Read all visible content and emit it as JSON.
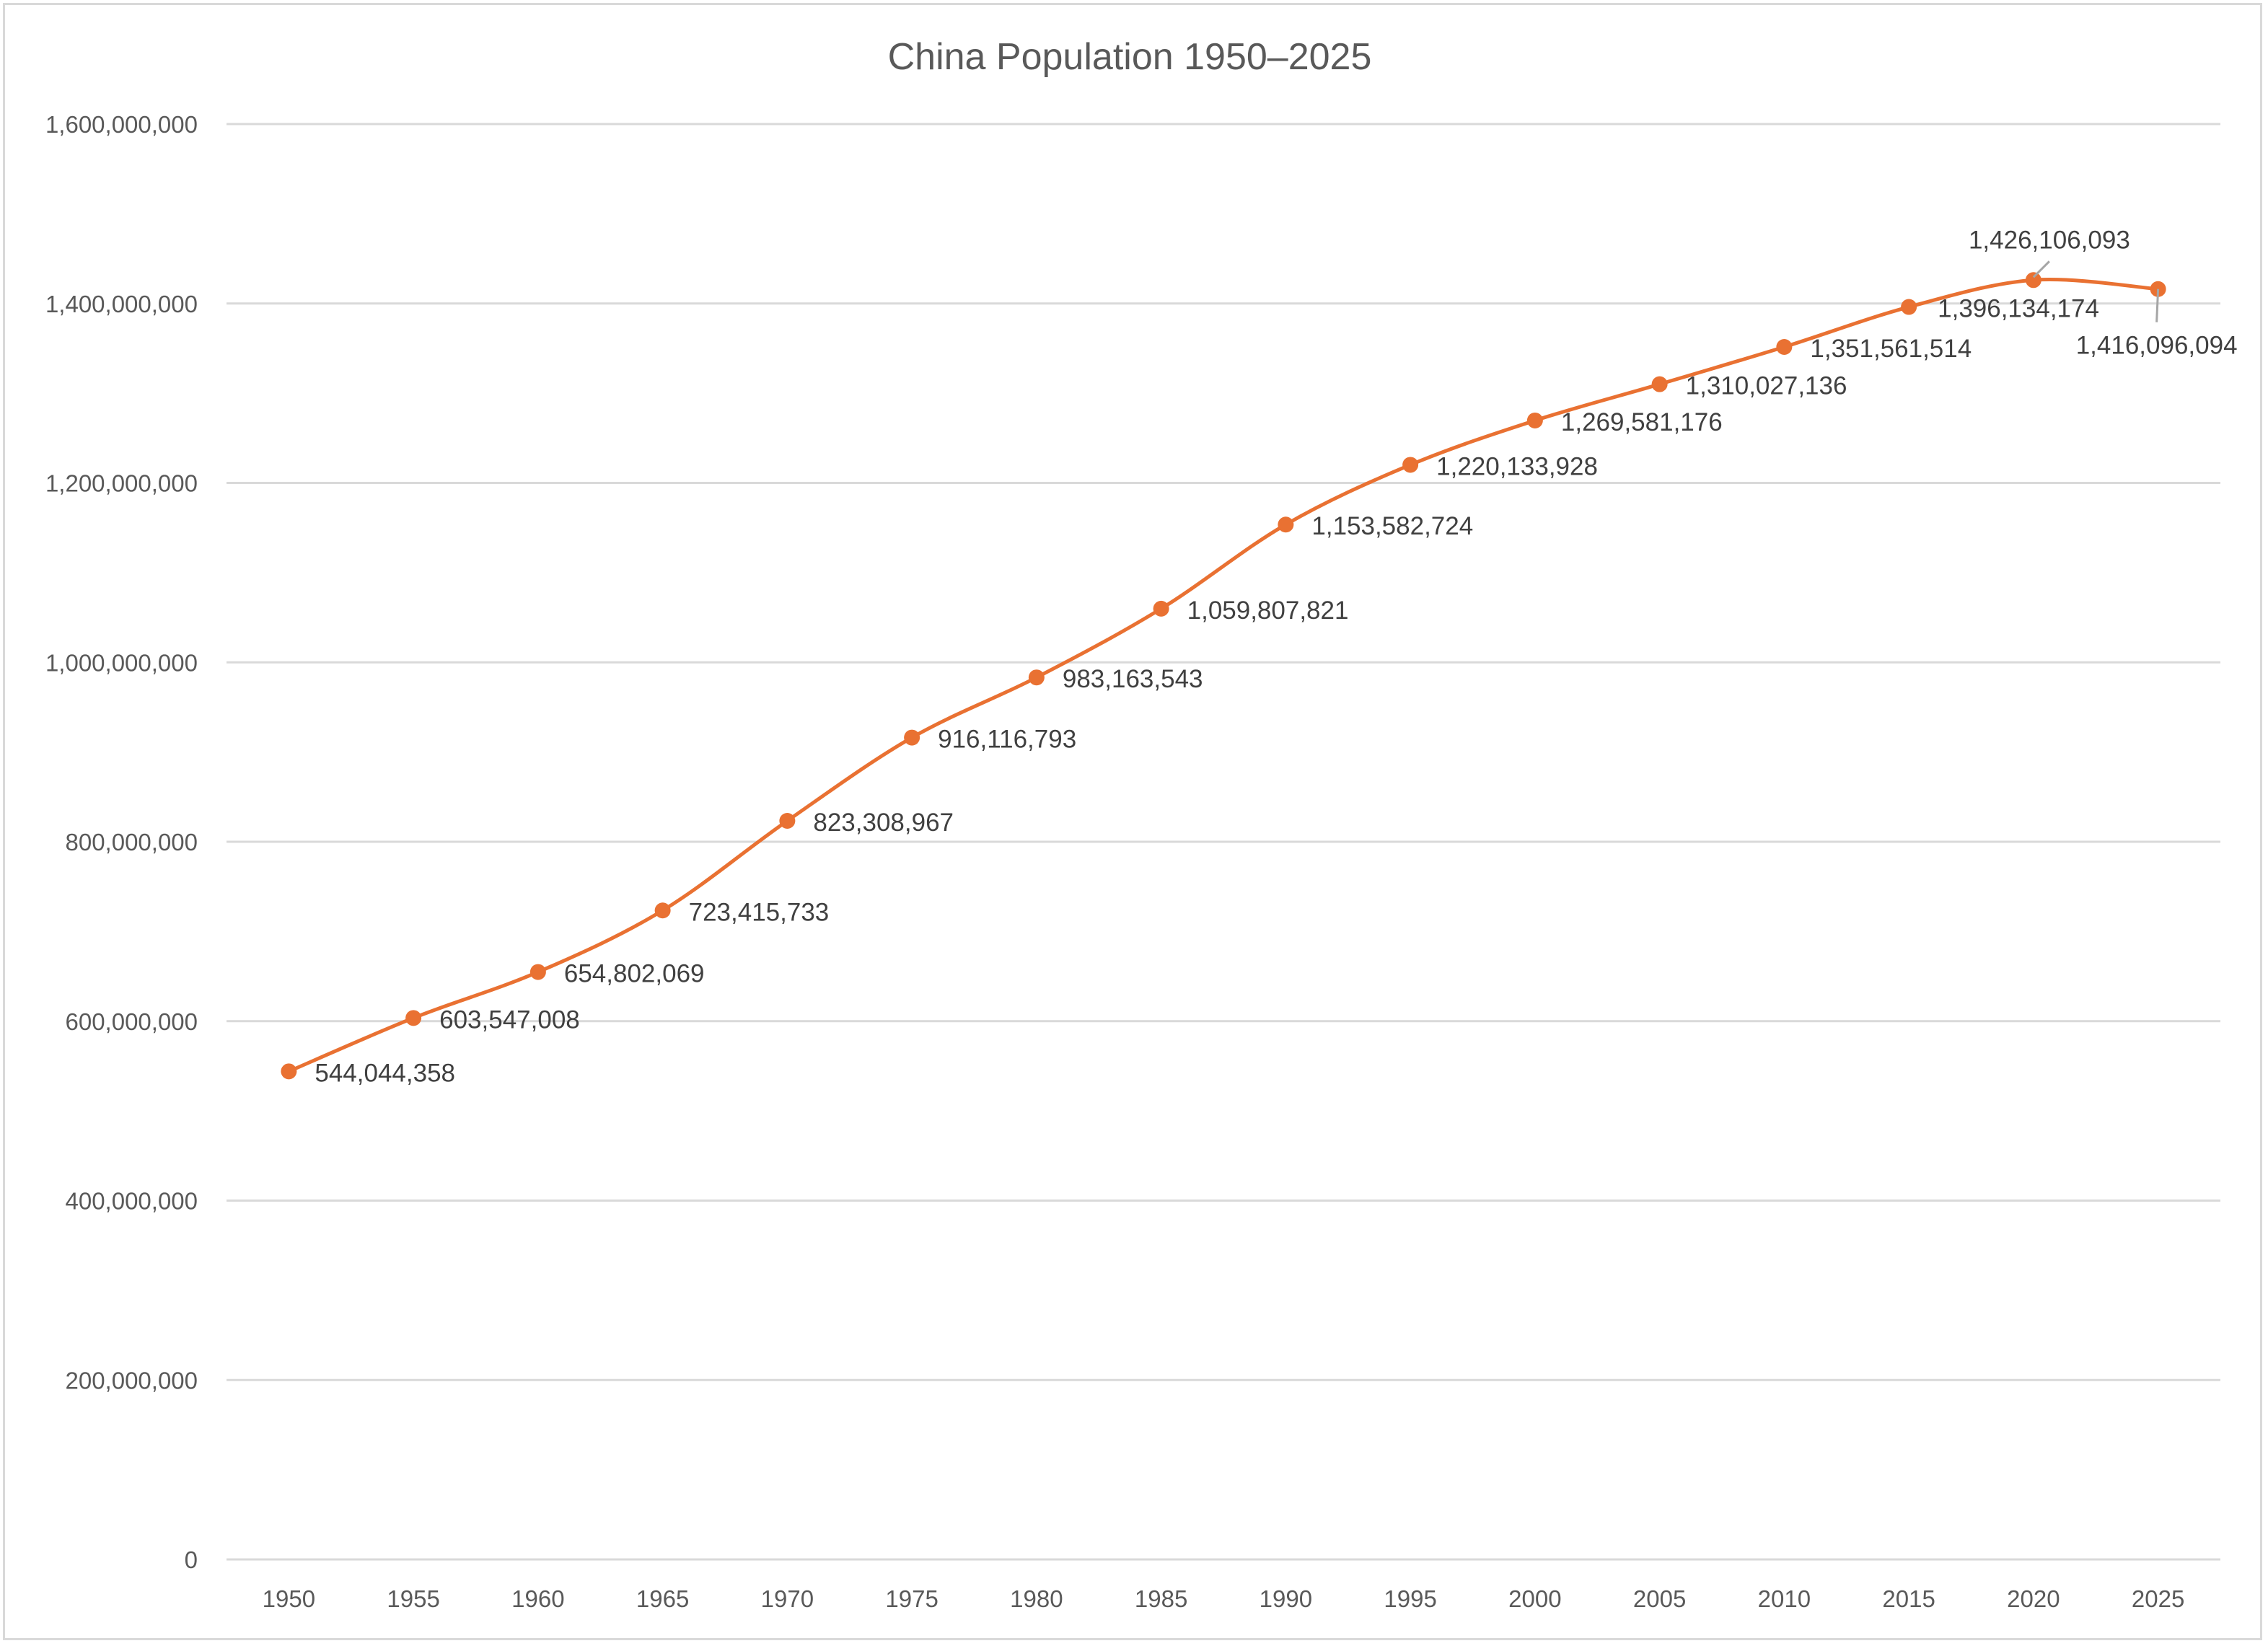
{
  "chart_data": {
    "type": "line",
    "title": "China Population 1950–2025",
    "xlabel": "",
    "ylabel": "",
    "categories": [
      "1950",
      "1955",
      "1960",
      "1965",
      "1970",
      "1975",
      "1980",
      "1985",
      "1990",
      "1995",
      "2000",
      "2005",
      "2010",
      "2015",
      "2020",
      "2025"
    ],
    "values": [
      544044358,
      603547008,
      654802069,
      723415733,
      823308967,
      916116793,
      983163543,
      1059807821,
      1153582724,
      1220133928,
      1269581176,
      1310027136,
      1351561514,
      1396134174,
      1426106093,
      1416096094
    ],
    "data_labels": [
      "544,044,358",
      "603,547,008",
      "654,802,069",
      "723,415,733",
      "823,308,967",
      "916,116,793",
      "983,163,543",
      "1,059,807,821",
      "1,153,582,724",
      "1,220,133,928",
      "1,269,581,176",
      "1,310,027,136",
      "1,351,561,514",
      "1,396,134,174",
      "1,426,106,093",
      "1,416,096,094"
    ],
    "ylim": [
      0,
      1600000000
    ],
    "yticks": [
      0,
      200000000,
      400000000,
      600000000,
      800000000,
      1000000000,
      1200000000,
      1400000000,
      1600000000
    ],
    "ytick_labels": [
      "0",
      "200,000,000",
      "400,000,000",
      "600,000,000",
      "800,000,000",
      "1,000,000,000",
      "1,200,000,000",
      "1,400,000,000",
      "1,600,000,000"
    ],
    "grid": true,
    "smooth": true,
    "markers": true,
    "legend": "none",
    "colors": {
      "series": "#E97132",
      "grid": "#d9d9d9",
      "leader": "#a6a6a6"
    }
  }
}
